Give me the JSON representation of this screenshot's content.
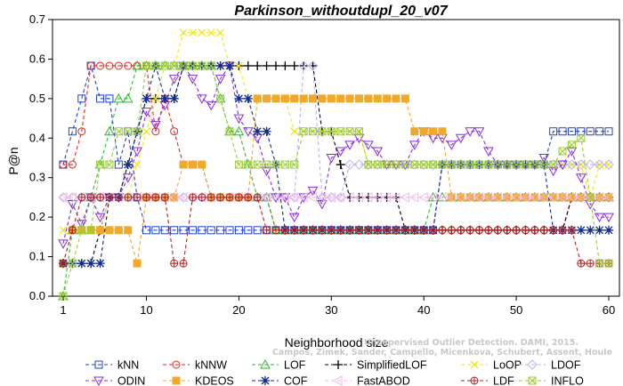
{
  "chart_data": {
    "type": "line",
    "title": "Parkinson_withoutdupl_20_v07",
    "xlabel": "Neighborhood size",
    "ylabel": "P@n",
    "xlim": [
      1,
      60
    ],
    "ylim": [
      0,
      0.7
    ],
    "x_ticks": [
      1,
      10,
      20,
      30,
      40,
      50,
      60
    ],
    "y_ticks": [
      "0.0",
      "0.1",
      "0.2",
      "0.3",
      "0.4",
      "0.5",
      "0.6",
      "0.7"
    ],
    "grid": false,
    "legend_position": "bottom",
    "x": [
      1,
      2,
      3,
      4,
      5,
      6,
      7,
      8,
      9,
      10,
      11,
      12,
      13,
      14,
      15,
      16,
      17,
      18,
      19,
      20,
      21,
      22,
      23,
      24,
      25,
      26,
      27,
      28,
      29,
      30,
      31,
      32,
      33,
      34,
      35,
      36,
      37,
      38,
      39,
      40,
      41,
      42,
      43,
      44,
      45,
      46,
      47,
      48,
      49,
      50,
      51,
      52,
      53,
      54,
      55,
      56,
      57,
      58,
      59,
      60
    ],
    "series": [
      {
        "name": "kNN",
        "color": "#1f3fd6",
        "marker": "square",
        "values": [
          0.333,
          0.417,
          0.5,
          0.583,
          0.5,
          0.5,
          0.333,
          0.417,
          0.25,
          0.167,
          0.167,
          0.167,
          0.167,
          0.167,
          0.167,
          0.167,
          0.167,
          0.167,
          0.167,
          0.167,
          0.167,
          0.167,
          0.167,
          0.167,
          0.167,
          0.167,
          0.167,
          0.167,
          0.167,
          0.167,
          0.167,
          0.167,
          0.167,
          0.167,
          0.167,
          0.167,
          0.167,
          0.167,
          0.167,
          0.167,
          0.167,
          0.333,
          0.333,
          0.333,
          0.333,
          0.333,
          0.333,
          0.333,
          0.333,
          0.333,
          0.333,
          0.333,
          0.333,
          0.417,
          0.417,
          0.417,
          0.417,
          0.417,
          0.417,
          0.417
        ]
      },
      {
        "name": "kNNW",
        "color": "#e0261c",
        "marker": "circle",
        "values": [
          0.333,
          0.333,
          0.417,
          0.583,
          0.583,
          0.583,
          0.583,
          0.583,
          0.583,
          0.583,
          0.417,
          0.5,
          0.417,
          0.333,
          0.333,
          0.333,
          0.25,
          0.25,
          0.25,
          0.25,
          0.25,
          0.25,
          0.25,
          0.167,
          0.167,
          0.167,
          0.167,
          0.167,
          0.167,
          0.167,
          0.167,
          0.167,
          0.167,
          0.167,
          0.167,
          0.167,
          0.167,
          0.167,
          0.167,
          0.167,
          0.167,
          0.167,
          0.167,
          0.167,
          0.167,
          0.167,
          0.167,
          0.167,
          0.167,
          0.167,
          0.167,
          0.167,
          0.167,
          0.167,
          0.167,
          0.25,
          0.25,
          0.25,
          0.25,
          0.25
        ]
      },
      {
        "name": "LOF",
        "color": "#2db82d",
        "marker": "triangle",
        "values": [
          0.0,
          0.167,
          0.167,
          0.25,
          0.333,
          0.417,
          0.5,
          0.5,
          0.583,
          0.583,
          0.583,
          0.583,
          0.583,
          0.583,
          0.583,
          0.583,
          0.583,
          0.5,
          0.417,
          0.417,
          0.333,
          0.25,
          0.25,
          0.167,
          0.167,
          0.167,
          0.167,
          0.167,
          0.167,
          0.167,
          0.167,
          0.167,
          0.167,
          0.167,
          0.167,
          0.167,
          0.167,
          0.167,
          0.167,
          0.167,
          0.25,
          0.25,
          0.25,
          0.25,
          0.25,
          0.25,
          0.25,
          0.25,
          0.25,
          0.25,
          0.25,
          0.25,
          0.25,
          0.25,
          0.25,
          0.25,
          0.25,
          0.25,
          0.25,
          0.25
        ]
      },
      {
        "name": "SimplifiedLOF",
        "color": "#000000",
        "marker": "plus",
        "values": [
          0.083,
          0.083,
          0.083,
          0.083,
          0.167,
          0.25,
          0.25,
          0.333,
          0.417,
          0.5,
          0.5,
          0.5,
          0.5,
          0.583,
          0.583,
          0.583,
          0.583,
          0.583,
          0.583,
          0.583,
          0.583,
          0.583,
          0.583,
          0.583,
          0.583,
          0.583,
          0.583,
          0.583,
          0.417,
          0.417,
          0.333,
          0.25,
          0.25,
          0.25,
          0.25,
          0.25,
          0.25,
          0.167,
          0.167,
          0.167,
          0.167,
          0.167,
          0.167,
          0.167,
          0.167,
          0.167,
          0.167,
          0.167,
          0.167,
          0.167,
          0.167,
          0.167,
          0.167,
          0.167,
          0.167,
          0.25,
          0.25,
          0.25,
          0.25,
          0.25
        ]
      },
      {
        "name": "LoOP",
        "color": "#f2e61e",
        "marker": "x",
        "values": [
          0.167,
          0.167,
          0.167,
          0.167,
          0.167,
          0.25,
          0.25,
          0.25,
          0.333,
          0.417,
          0.5,
          0.583,
          0.583,
          0.667,
          0.667,
          0.667,
          0.667,
          0.667,
          0.583,
          0.583,
          0.5,
          0.5,
          0.5,
          0.5,
          0.5,
          0.417,
          0.417,
          0.417,
          0.417,
          0.417,
          0.417,
          0.417,
          0.417,
          0.333,
          0.333,
          0.333,
          0.333,
          0.333,
          0.333,
          0.333,
          0.333,
          0.333,
          0.333,
          0.333,
          0.333,
          0.333,
          0.333,
          0.333,
          0.333,
          0.333,
          0.333,
          0.333,
          0.333,
          0.333,
          0.333,
          0.333,
          0.333,
          0.25,
          0.333,
          0.333
        ]
      },
      {
        "name": "LDOF",
        "color": "#b6b3f0",
        "marker": "diamond",
        "values": [
          0.25,
          0.25,
          0.25,
          0.25,
          0.25,
          0.25,
          0.25,
          0.25,
          0.25,
          0.25,
          0.25,
          0.25,
          0.25,
          0.25,
          0.25,
          0.25,
          0.25,
          0.25,
          0.25,
          0.25,
          0.25,
          0.25,
          0.25,
          0.25,
          0.25,
          0.25,
          0.583,
          0.583,
          0.25,
          0.25,
          0.25,
          0.333,
          0.333,
          0.333,
          0.333,
          0.333,
          0.333,
          0.333,
          0.333,
          0.333,
          0.333,
          0.333,
          0.333,
          0.333,
          0.333,
          0.333,
          0.333,
          0.333,
          0.333,
          0.333,
          0.333,
          0.333,
          0.333,
          0.333,
          0.333,
          0.333,
          0.333,
          0.333,
          0.333,
          0.333
        ]
      },
      {
        "name": "ODIN",
        "color": "#8a2be2",
        "marker": "triangle-down",
        "values": [
          0.133,
          0.233,
          0.183,
          0.25,
          0.2,
          0.25,
          0.25,
          0.3,
          0.367,
          0.467,
          0.433,
          0.483,
          0.55,
          0.583,
          0.55,
          0.5,
          0.483,
          0.55,
          0.583,
          0.45,
          0.417,
          0.4,
          0.317,
          0.25,
          0.25,
          0.2,
          0.25,
          0.267,
          0.233,
          0.35,
          0.367,
          0.383,
          0.4,
          0.383,
          0.367,
          0.333,
          0.333,
          0.333,
          0.383,
          0.417,
          0.4,
          0.4,
          0.383,
          0.4,
          0.417,
          0.417,
          0.367,
          0.333,
          0.333,
          0.333,
          0.333,
          0.333,
          0.35,
          0.317,
          0.333,
          0.367,
          0.3,
          0.233,
          0.2,
          0.2
        ]
      },
      {
        "name": "KDEOS",
        "color": "#f0a92a",
        "marker": "square-filled",
        "values": [
          0.083,
          0.167,
          0.167,
          0.167,
          0.167,
          0.167,
          0.167,
          0.167,
          0.083,
          0.25,
          0.25,
          0.25,
          0.25,
          0.333,
          0.333,
          0.333,
          0.25,
          0.25,
          0.25,
          0.25,
          0.25,
          0.5,
          0.5,
          0.5,
          0.5,
          0.5,
          0.5,
          0.5,
          0.5,
          0.5,
          0.5,
          0.5,
          0.5,
          0.5,
          0.5,
          0.5,
          0.5,
          0.5,
          0.417,
          0.417,
          0.417,
          0.417,
          0.25,
          0.25,
          0.25,
          0.25,
          0.25,
          0.25,
          0.25,
          0.25,
          0.25,
          0.25,
          0.25,
          0.25,
          0.25,
          0.25,
          0.25,
          0.25,
          0.25,
          0.25
        ]
      },
      {
        "name": "COF",
        "color": "#0f2a8c",
        "marker": "star",
        "values": [
          0.083,
          0.083,
          0.083,
          0.083,
          0.083,
          0.25,
          0.25,
          0.333,
          0.417,
          0.5,
          0.583,
          0.5,
          0.5,
          0.583,
          0.583,
          0.583,
          0.583,
          0.583,
          0.583,
          0.5,
          0.5,
          0.417,
          0.417,
          0.333,
          0.167,
          0.167,
          0.167,
          0.167,
          0.167,
          0.167,
          0.167,
          0.167,
          0.167,
          0.167,
          0.167,
          0.167,
          0.167,
          0.167,
          0.167,
          0.167,
          0.167,
          0.333,
          0.333,
          0.333,
          0.333,
          0.333,
          0.333,
          0.333,
          0.333,
          0.333,
          0.333,
          0.333,
          0.333,
          0.167,
          0.167,
          0.167,
          0.167,
          0.167,
          0.167,
          0.167
        ]
      },
      {
        "name": "FastABOD",
        "color": "#f4b6f0",
        "marker": "triangle-left",
        "values": [
          0.25,
          0.25,
          0.25,
          0.25,
          0.25,
          0.25,
          0.25,
          0.25,
          0.25,
          0.25,
          0.25,
          0.25,
          0.25,
          0.25,
          0.25,
          0.25,
          0.25,
          0.25,
          0.25,
          0.25,
          0.25,
          0.25,
          0.25,
          0.25,
          0.25,
          0.25,
          0.25,
          0.25,
          0.25,
          0.25,
          0.25,
          0.25,
          0.25,
          0.25,
          0.25,
          0.25,
          0.25,
          0.25,
          0.25,
          0.25,
          0.25,
          0.25,
          0.25,
          0.25,
          0.25,
          0.25,
          0.25,
          0.25,
          0.25,
          0.25,
          0.25,
          0.25,
          0.25,
          0.25,
          0.25,
          0.25,
          0.25,
          0.25,
          0.25,
          0.25
        ]
      },
      {
        "name": "LDF",
        "color": "#b02020",
        "marker": "circle-plus",
        "values": [
          0.083,
          0.167,
          0.25,
          0.25,
          0.25,
          0.25,
          0.25,
          0.25,
          0.25,
          0.25,
          0.25,
          0.25,
          0.083,
          0.083,
          0.25,
          0.25,
          0.25,
          0.25,
          0.25,
          0.25,
          0.25,
          0.25,
          0.167,
          0.167,
          0.167,
          0.167,
          0.167,
          0.167,
          0.167,
          0.167,
          0.167,
          0.167,
          0.167,
          0.167,
          0.167,
          0.167,
          0.167,
          0.167,
          0.167,
          0.167,
          0.167,
          0.167,
          0.167,
          0.167,
          0.167,
          0.167,
          0.167,
          0.167,
          0.167,
          0.167,
          0.167,
          0.167,
          0.167,
          0.167,
          0.167,
          0.167,
          0.083,
          0.083,
          0.083,
          0.083
        ]
      },
      {
        "name": "INFLO",
        "color": "#9acd32",
        "marker": "square-x",
        "values": [
          0.0,
          0.083,
          0.167,
          0.167,
          0.333,
          0.333,
          0.417,
          0.417,
          0.417,
          0.583,
          0.583,
          0.583,
          0.583,
          0.583,
          0.583,
          0.583,
          0.583,
          0.5,
          0.417,
          0.333,
          0.333,
          0.333,
          0.333,
          0.333,
          0.333,
          0.333,
          0.417,
          0.417,
          0.417,
          0.417,
          0.417,
          0.417,
          0.417,
          0.333,
          0.333,
          0.333,
          0.333,
          0.333,
          0.333,
          0.333,
          0.333,
          0.333,
          0.333,
          0.333,
          0.333,
          0.333,
          0.333,
          0.333,
          0.333,
          0.333,
          0.333,
          0.333,
          0.333,
          0.333,
          0.367,
          0.383,
          0.4,
          0.25,
          0.083,
          0.083
        ]
      }
    ],
    "watermark": [
      "Campos, Zimek, Sander, Campello, Micenkova, Schubert, Assent, Houle",
      "Unsupervised Outlier Detection. DAMI, 2015."
    ]
  }
}
